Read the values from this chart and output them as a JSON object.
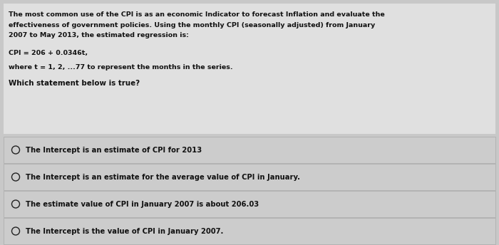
{
  "bg_color": "#c8c8c8",
  "top_box_color": "#e0e0e0",
  "option_box_color": "#cccccc",
  "separator_color": "#aaaaaa",
  "text_color": "#111111",
  "circle_color": "#222222",
  "para_lines": [
    "The most common use of the CPI is as an economic Indicator to forecast Inflation and evaluate the",
    "effectiveness of government policies. Using the monthly CPI (seasonally adjusted) from January",
    "2007 to May 2013, the estimated regression is:"
  ],
  "equation": "CPI = 206 + 0.0346t,",
  "where_line": "where t = 1, 2, ...77 to represent the months in the series.",
  "question": "Which statement below is true?",
  "options": [
    "The Intercept is an estimate of CPI for 2013",
    "The Intercept is an estimate for the average value of CPI in January.",
    "The estimate value of CPI in January 2007 is about 206.03",
    "The Intercept is the value of CPI in January 2007."
  ],
  "font_size_para": 6.8,
  "font_size_options": 7.2,
  "font_size_question": 7.4
}
